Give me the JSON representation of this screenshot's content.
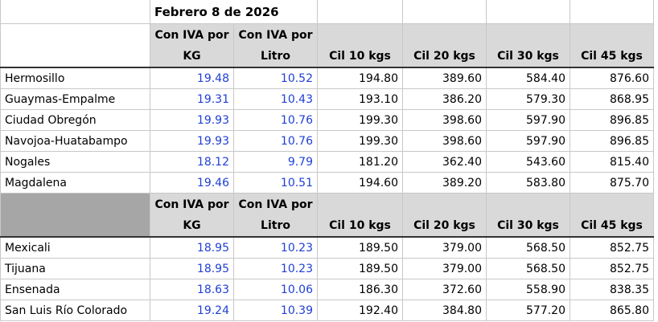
{
  "title": "Febrero 8 de 2026",
  "sections": [
    {
      "header": [
        "Con IVA por KG",
        "Con IVA por Litro",
        "Cil 10 kgs",
        "Cil 20 kgs",
        "Cil 30 kgs",
        "Cil 45 kgs"
      ],
      "rows": [
        [
          "Hermosillo",
          "19.48",
          "10.52",
          "194.80",
          "389.60",
          "584.40",
          "876.60"
        ],
        [
          "Guaymas-Empalme",
          "19.31",
          "10.43",
          "193.10",
          "386.20",
          "579.30",
          "868.95"
        ],
        [
          "Ciudad Obregón",
          "19.93",
          "10.76",
          "199.30",
          "398.60",
          "597.90",
          "896.85"
        ],
        [
          "Navojoa-Huatabampo",
          "19.93",
          "10.76",
          "199.30",
          "398.60",
          "597.90",
          "896.85"
        ],
        [
          "Nogales",
          "18.12",
          "9.79",
          "181.20",
          "362.40",
          "543.60",
          "815.40"
        ],
        [
          "Magdalena",
          "19.46",
          "10.51",
          "194.60",
          "389.20",
          "583.80",
          "875.70"
        ]
      ]
    },
    {
      "header": [
        "Con IVA por KG",
        "Con IVA por Litro",
        "Cil 10 kgs",
        "Cil 20 kgs",
        "Cil 30 kgs",
        "Cil 45 kgs"
      ],
      "rows": [
        [
          "Mexicali",
          "18.95",
          "10.23",
          "189.50",
          "379.00",
          "568.50",
          "852.75"
        ],
        [
          "Tijuana",
          "18.95",
          "10.23",
          "189.50",
          "379.00",
          "568.50",
          "852.75"
        ],
        [
          "Ensenada",
          "18.63",
          "10.06",
          "186.30",
          "372.60",
          "558.90",
          "838.35"
        ],
        [
          "San Luis Río Colorado",
          "19.24",
          "10.39",
          "192.40",
          "384.80",
          "577.20",
          "865.80"
        ]
      ]
    }
  ]
}
